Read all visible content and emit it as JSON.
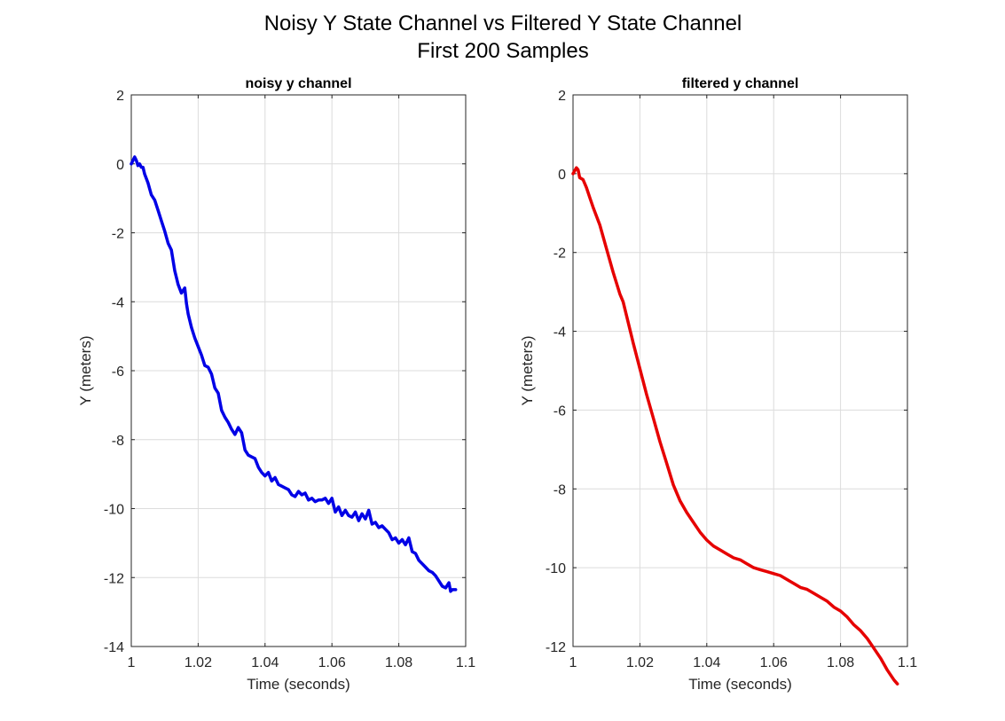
{
  "figure": {
    "title_line1": "Noisy Y State Channel vs Filtered Y State Channel",
    "title_line2": "First 200 Samples"
  },
  "chart_data": [
    {
      "type": "line",
      "title": "noisy y channel",
      "xlabel": "Time (seconds)",
      "ylabel": "Y (meters)",
      "xlim": [
        1,
        1.1
      ],
      "ylim": [
        -14,
        2
      ],
      "xticks": [
        "1",
        "1.02",
        "1.04",
        "1.06",
        "1.08",
        "1.1"
      ],
      "yticks": [
        "2",
        "0",
        "-2",
        "-4",
        "-6",
        "-8",
        "-10",
        "-12",
        "-14"
      ],
      "grid": true,
      "color": "#0000e6",
      "series": [
        {
          "x": [
            1.0,
            1.001,
            1.0015,
            1.002,
            1.0025,
            1.003,
            1.0035,
            1.004,
            1.005,
            1.006,
            1.007,
            1.008,
            1.009,
            1.01,
            1.011,
            1.012,
            1.013,
            1.0135,
            1.014,
            1.015,
            1.016,
            1.0165,
            1.017,
            1.018,
            1.019,
            1.02,
            1.021,
            1.022,
            1.023,
            1.024,
            1.025,
            1.026,
            1.0265,
            1.027,
            1.028,
            1.029,
            1.03,
            1.031,
            1.032,
            1.033,
            1.0335,
            1.034,
            1.035,
            1.036,
            1.037,
            1.038,
            1.039,
            1.04,
            1.041,
            1.042,
            1.043,
            1.044,
            1.045,
            1.046,
            1.047,
            1.048,
            1.049,
            1.05,
            1.051,
            1.052,
            1.053,
            1.054,
            1.055,
            1.056,
            1.057,
            1.058,
            1.059,
            1.06,
            1.061,
            1.062,
            1.063,
            1.064,
            1.065,
            1.066,
            1.067,
            1.068,
            1.069,
            1.07,
            1.071,
            1.072,
            1.073,
            1.074,
            1.075,
            1.076,
            1.077,
            1.078,
            1.079,
            1.08,
            1.081,
            1.082,
            1.083,
            1.084,
            1.085,
            1.086,
            1.087,
            1.088,
            1.089,
            1.09,
            1.091,
            1.092,
            1.093,
            1.094,
            1.095,
            1.0955,
            1.096,
            1.097
          ],
          "y": [
            0.0,
            0.2,
            0.1,
            -0.05,
            0.0,
            -0.1,
            -0.1,
            -0.3,
            -0.55,
            -0.9,
            -1.05,
            -1.35,
            -1.65,
            -1.95,
            -2.3,
            -2.5,
            -3.1,
            -3.3,
            -3.5,
            -3.75,
            -3.6,
            -4.05,
            -4.35,
            -4.75,
            -5.05,
            -5.3,
            -5.55,
            -5.85,
            -5.9,
            -6.1,
            -6.5,
            -6.65,
            -6.9,
            -7.15,
            -7.35,
            -7.5,
            -7.7,
            -7.85,
            -7.65,
            -7.8,
            -8.05,
            -8.3,
            -8.45,
            -8.5,
            -8.55,
            -8.8,
            -8.95,
            -9.05,
            -8.95,
            -9.2,
            -9.1,
            -9.3,
            -9.35,
            -9.4,
            -9.45,
            -9.6,
            -9.65,
            -9.5,
            -9.6,
            -9.55,
            -9.75,
            -9.7,
            -9.8,
            -9.75,
            -9.75,
            -9.7,
            -9.85,
            -9.7,
            -10.1,
            -9.95,
            -10.2,
            -10.05,
            -10.2,
            -10.25,
            -10.1,
            -10.35,
            -10.15,
            -10.3,
            -10.05,
            -10.45,
            -10.4,
            -10.55,
            -10.5,
            -10.6,
            -10.7,
            -10.9,
            -10.85,
            -11.0,
            -10.9,
            -11.05,
            -10.85,
            -11.25,
            -11.3,
            -11.5,
            -11.6,
            -11.7,
            -11.8,
            -11.85,
            -11.95,
            -12.1,
            -12.25,
            -12.3,
            -12.15,
            -12.4,
            -12.35,
            -12.35
          ]
        }
      ]
    },
    {
      "type": "line",
      "title": "filtered y channel",
      "xlabel": "Time (seconds)",
      "ylabel": "Y (meters)",
      "xlim": [
        1,
        1.1
      ],
      "ylim": [
        -12,
        2
      ],
      "xticks": [
        "1",
        "1.02",
        "1.04",
        "1.06",
        "1.08",
        "1.1"
      ],
      "yticks": [
        "2",
        "0",
        "-2",
        "-4",
        "-6",
        "-8",
        "-10",
        "-12"
      ],
      "grid": true,
      "color": "#e60000",
      "series": [
        {
          "x": [
            1.0,
            1.001,
            1.0015,
            1.002,
            1.003,
            1.004,
            1.005,
            1.006,
            1.008,
            1.01,
            1.012,
            1.014,
            1.015,
            1.016,
            1.018,
            1.02,
            1.022,
            1.024,
            1.026,
            1.028,
            1.03,
            1.032,
            1.034,
            1.036,
            1.038,
            1.04,
            1.042,
            1.044,
            1.046,
            1.048,
            1.05,
            1.052,
            1.054,
            1.056,
            1.058,
            1.06,
            1.062,
            1.064,
            1.066,
            1.068,
            1.07,
            1.072,
            1.074,
            1.076,
            1.078,
            1.08,
            1.082,
            1.084,
            1.086,
            1.088,
            1.09,
            1.092,
            1.094,
            1.096,
            1.097
          ],
          "y": [
            0.0,
            0.15,
            0.1,
            -0.1,
            -0.15,
            -0.35,
            -0.6,
            -0.85,
            -1.3,
            -1.9,
            -2.5,
            -3.05,
            -3.25,
            -3.6,
            -4.3,
            -4.95,
            -5.6,
            -6.2,
            -6.8,
            -7.35,
            -7.9,
            -8.3,
            -8.6,
            -8.85,
            -9.1,
            -9.3,
            -9.45,
            -9.55,
            -9.65,
            -9.75,
            -9.8,
            -9.9,
            -10.0,
            -10.05,
            -10.1,
            -10.15,
            -10.2,
            -10.3,
            -10.4,
            -10.5,
            -10.55,
            -10.65,
            -10.75,
            -10.85,
            -11.0,
            -11.1,
            -11.25,
            -11.45,
            -11.6,
            -11.8,
            -12.05,
            -12.3,
            -12.6,
            -12.85,
            -12.95
          ]
        }
      ]
    }
  ]
}
